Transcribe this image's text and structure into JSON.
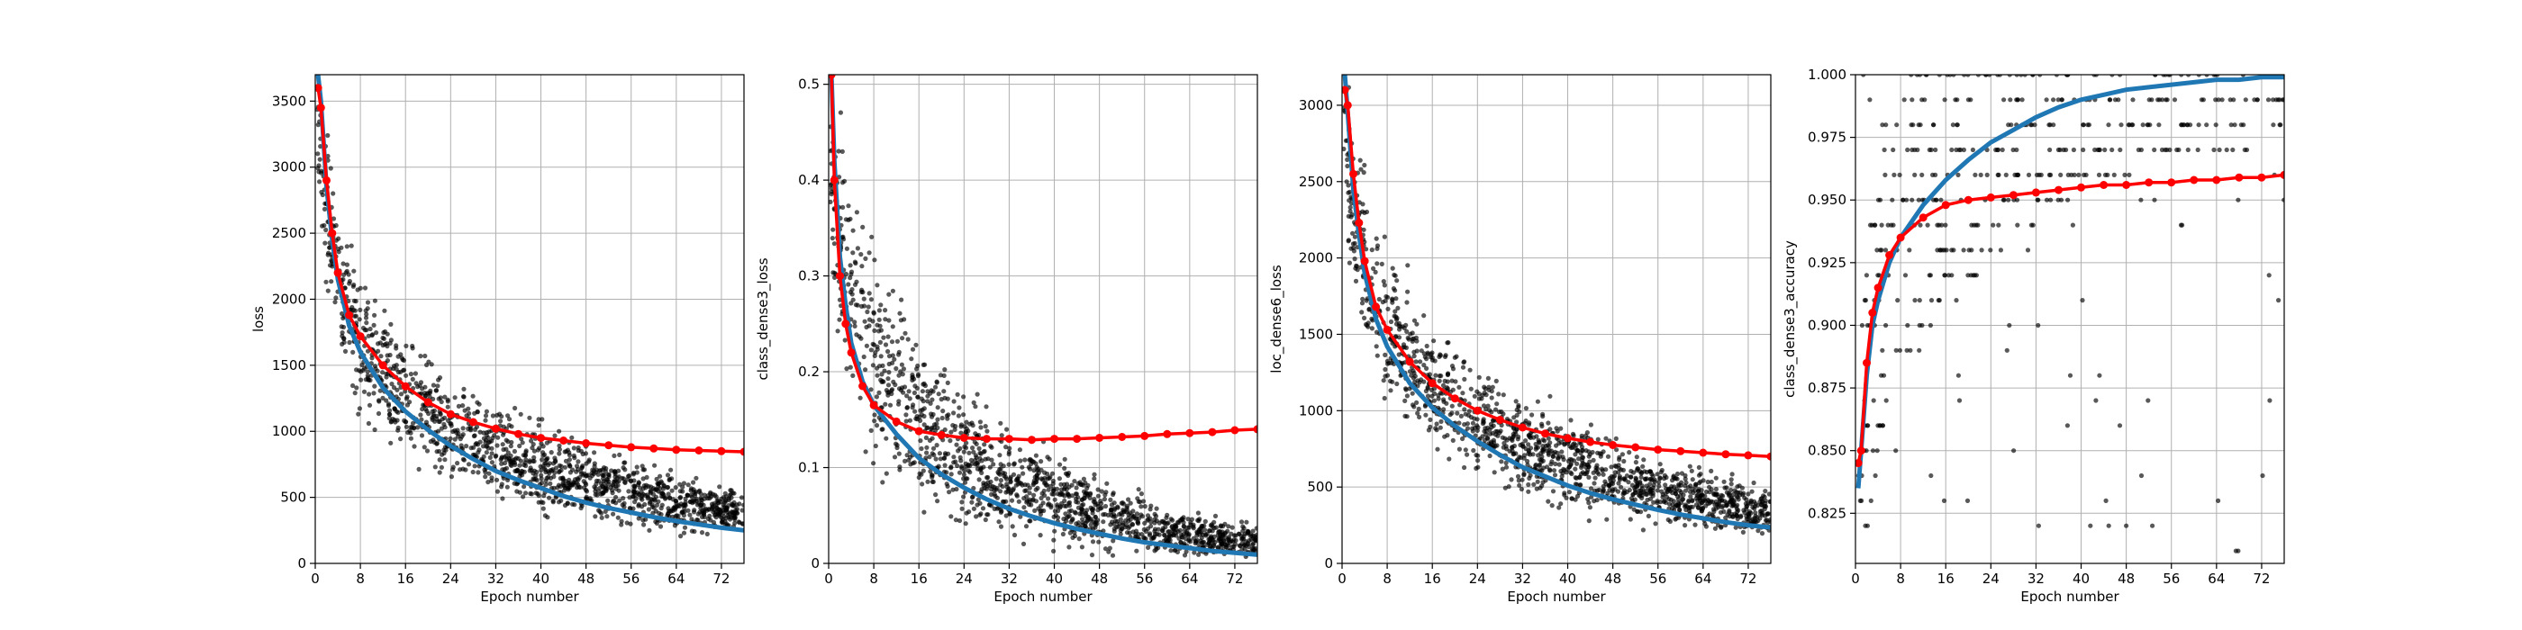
{
  "colors": {
    "train": "#1f77b4",
    "val": "#ff0000",
    "scatter": "#000000",
    "grid": "#b0b0b0"
  },
  "chart_data": [
    {
      "type": "line",
      "xlabel": "Epoch number",
      "ylabel": "loss",
      "xlim": [
        0,
        76
      ],
      "ylim": [
        0,
        3700
      ],
      "xticks": [
        0,
        8,
        16,
        24,
        32,
        40,
        48,
        56,
        64,
        72
      ],
      "yticks": [
        0,
        500,
        1000,
        1500,
        2000,
        2500,
        3000,
        3500
      ],
      "grid": true,
      "series": [
        {
          "role": "train",
          "x": [
            0.5,
            1,
            2,
            3,
            4,
            6,
            8,
            12,
            16,
            20,
            24,
            28,
            32,
            36,
            40,
            44,
            48,
            52,
            56,
            60,
            64,
            68,
            72,
            76
          ],
          "y": [
            3700,
            3500,
            2850,
            2450,
            2150,
            1800,
            1600,
            1330,
            1150,
            1010,
            890,
            790,
            700,
            630,
            570,
            510,
            460,
            420,
            385,
            350,
            320,
            295,
            270,
            250
          ]
        },
        {
          "role": "val",
          "x": [
            0.5,
            1,
            2,
            3,
            4,
            6,
            8,
            12,
            16,
            20,
            24,
            28,
            32,
            36,
            40,
            44,
            48,
            52,
            56,
            60,
            64,
            68,
            72,
            76
          ],
          "y": [
            3600,
            3450,
            2900,
            2500,
            2200,
            1880,
            1720,
            1500,
            1340,
            1220,
            1130,
            1070,
            1020,
            980,
            950,
            930,
            910,
            895,
            880,
            870,
            860,
            855,
            850,
            845
          ]
        }
      ],
      "scatter_band": {
        "x": [
          0.5,
          1,
          2,
          4,
          8,
          16,
          24,
          32,
          40,
          48,
          56,
          64,
          72,
          76
        ],
        "low": [
          2800,
          2300,
          1800,
          1350,
          900,
          650,
          480,
          380,
          300,
          240,
          200,
          170,
          150,
          140
        ],
        "high": [
          3700,
          3700,
          3700,
          2900,
          2400,
          1850,
          1500,
          1300,
          1150,
          1000,
          880,
          760,
          660,
          620
        ]
      }
    },
    {
      "type": "line",
      "xlabel": "Epoch number",
      "ylabel": "class_dense3_loss",
      "xlim": [
        0,
        76
      ],
      "ylim": [
        0,
        0.51
      ],
      "xticks": [
        0,
        8,
        16,
        24,
        32,
        40,
        48,
        56,
        64,
        72
      ],
      "yticks": [
        0.0,
        0.1,
        0.2,
        0.3,
        0.4,
        0.5
      ],
      "grid": true,
      "series": [
        {
          "role": "train",
          "x": [
            0.5,
            1,
            2,
            3,
            4,
            6,
            8,
            12,
            16,
            20,
            24,
            28,
            32,
            36,
            40,
            44,
            48,
            52,
            56,
            60,
            64,
            68,
            72,
            76
          ],
          "y": [
            0.51,
            0.42,
            0.32,
            0.27,
            0.23,
            0.19,
            0.165,
            0.135,
            0.11,
            0.093,
            0.079,
            0.067,
            0.057,
            0.049,
            0.042,
            0.036,
            0.031,
            0.026,
            0.022,
            0.019,
            0.016,
            0.013,
            0.011,
            0.009
          ]
        },
        {
          "role": "val",
          "x": [
            0.5,
            1,
            2,
            3,
            4,
            6,
            8,
            12,
            16,
            20,
            24,
            28,
            32,
            36,
            40,
            44,
            48,
            52,
            56,
            60,
            64,
            68,
            72,
            76
          ],
          "y": [
            0.51,
            0.4,
            0.3,
            0.25,
            0.22,
            0.185,
            0.165,
            0.148,
            0.138,
            0.134,
            0.131,
            0.13,
            0.13,
            0.129,
            0.13,
            0.13,
            0.131,
            0.132,
            0.133,
            0.135,
            0.136,
            0.137,
            0.139,
            0.14
          ]
        }
      ],
      "scatter_band": {
        "x": [
          0.5,
          1,
          2,
          4,
          8,
          16,
          24,
          32,
          40,
          48,
          56,
          64,
          72,
          76
        ],
        "low": [
          0.3,
          0.22,
          0.15,
          0.1,
          0.06,
          0.03,
          0.015,
          0.008,
          0.004,
          0.002,
          0.001,
          0.0,
          0.0,
          0.0
        ],
        "high": [
          0.51,
          0.51,
          0.51,
          0.45,
          0.37,
          0.27,
          0.2,
          0.16,
          0.13,
          0.1,
          0.08,
          0.06,
          0.05,
          0.045
        ]
      }
    },
    {
      "type": "line",
      "xlabel": "Epoch number",
      "ylabel": "loc_dense6_loss",
      "xlim": [
        0,
        76
      ],
      "ylim": [
        0,
        3200
      ],
      "xticks": [
        0,
        8,
        16,
        24,
        32,
        40,
        48,
        56,
        64,
        72
      ],
      "yticks": [
        0,
        500,
        1000,
        1500,
        2000,
        2500,
        3000
      ],
      "grid": true,
      "series": [
        {
          "role": "train",
          "x": [
            0.5,
            1,
            2,
            3,
            4,
            6,
            8,
            12,
            16,
            20,
            24,
            28,
            32,
            36,
            40,
            44,
            48,
            52,
            56,
            60,
            64,
            68,
            72,
            76
          ],
          "y": [
            3200,
            2950,
            2450,
            2150,
            1900,
            1600,
            1420,
            1180,
            1020,
            900,
            800,
            710,
            630,
            570,
            510,
            460,
            420,
            385,
            350,
            320,
            295,
            270,
            250,
            235
          ]
        },
        {
          "role": "val",
          "x": [
            0.5,
            1,
            2,
            3,
            4,
            6,
            8,
            12,
            16,
            20,
            24,
            28,
            32,
            36,
            40,
            44,
            48,
            52,
            56,
            60,
            64,
            68,
            72,
            76
          ],
          "y": [
            3100,
            3000,
            2550,
            2230,
            1980,
            1680,
            1530,
            1320,
            1180,
            1080,
            1000,
            940,
            890,
            850,
            820,
            795,
            775,
            760,
            745,
            735,
            725,
            715,
            708,
            700
          ]
        }
      ],
      "scatter_band": {
        "x": [
          0.5,
          1,
          2,
          4,
          8,
          16,
          24,
          32,
          40,
          48,
          56,
          64,
          72,
          76
        ],
        "low": [
          2400,
          2000,
          1600,
          1200,
          850,
          600,
          450,
          350,
          280,
          220,
          190,
          160,
          140,
          130
        ],
        "high": [
          3200,
          3200,
          3200,
          2700,
          2200,
          1700,
          1400,
          1200,
          1050,
          900,
          780,
          670,
          580,
          540
        ]
      }
    },
    {
      "type": "line",
      "xlabel": "Epoch number",
      "ylabel": "class_dense3_accuracy",
      "xlim": [
        0,
        76
      ],
      "ylim": [
        0.805,
        1.0
      ],
      "xticks": [
        0,
        8,
        16,
        24,
        32,
        40,
        48,
        56,
        64,
        72
      ],
      "yticks": [
        0.825,
        0.85,
        0.875,
        0.9,
        0.925,
        0.95,
        0.975,
        1.0
      ],
      "ytick_labels": [
        "0.825",
        "0.850",
        "0.875",
        "0.900",
        "0.925",
        "0.950",
        "0.975",
        "1.000"
      ],
      "grid": true,
      "series": [
        {
          "role": "train",
          "x": [
            0.5,
            1,
            2,
            3,
            4,
            6,
            8,
            12,
            16,
            20,
            24,
            28,
            32,
            36,
            40,
            44,
            48,
            52,
            56,
            60,
            64,
            68,
            72,
            76
          ],
          "y": [
            0.835,
            0.85,
            0.88,
            0.9,
            0.91,
            0.925,
            0.935,
            0.948,
            0.958,
            0.966,
            0.973,
            0.978,
            0.983,
            0.987,
            0.99,
            0.992,
            0.994,
            0.995,
            0.996,
            0.997,
            0.998,
            0.998,
            0.999,
            0.999
          ]
        },
        {
          "role": "val",
          "x": [
            0.5,
            1,
            2,
            3,
            4,
            6,
            8,
            12,
            16,
            20,
            24,
            28,
            32,
            36,
            40,
            44,
            48,
            52,
            56,
            60,
            64,
            68,
            72,
            76
          ],
          "y": [
            0.845,
            0.85,
            0.885,
            0.905,
            0.915,
            0.928,
            0.935,
            0.943,
            0.948,
            0.95,
            0.951,
            0.952,
            0.953,
            0.954,
            0.955,
            0.956,
            0.956,
            0.957,
            0.957,
            0.958,
            0.958,
            0.959,
            0.959,
            0.96
          ]
        }
      ],
      "accuracy_levels": [
        0.81,
        0.82,
        0.83,
        0.84,
        0.85,
        0.86,
        0.87,
        0.88,
        0.89,
        0.9,
        0.91,
        0.92,
        0.93,
        0.94,
        0.95,
        0.96,
        0.97,
        0.98,
        0.99,
        1.0
      ]
    }
  ]
}
